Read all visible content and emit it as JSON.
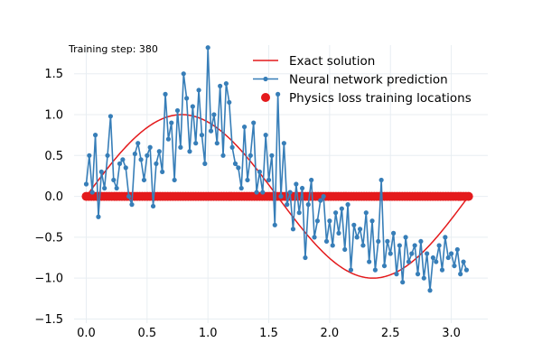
{
  "chart_data": {
    "type": "line",
    "annotation": "Training step: 380",
    "xlim": [
      -0.1,
      3.3
    ],
    "ylim": [
      -1.55,
      1.85
    ],
    "x_ticks": [
      0.0,
      0.5,
      1.0,
      1.5,
      2.0,
      2.5,
      3.0
    ],
    "x_tick_labels": [
      "0.0",
      "0.5",
      "1.0",
      "1.5",
      "2.0",
      "2.5",
      "3.0"
    ],
    "y_ticks": [
      1.5,
      1.0,
      0.5,
      0.0,
      -0.5,
      -1.0,
      -1.5
    ],
    "y_tick_labels": [
      "1.5",
      "1.0",
      "0.5",
      "0.0",
      "−0.5",
      "−1.0",
      "−1.5"
    ],
    "grid": true,
    "legend_placement": "top-right",
    "series": [
      {
        "name": "Exact solution",
        "kind": "line",
        "color": "#e41a1c",
        "function": "sin(2x)",
        "x_range": [
          0.0,
          3.14159
        ]
      },
      {
        "name": "Neural network prediction",
        "kind": "line-markers",
        "color": "#377eb8",
        "x": [
          0.0,
          0.025,
          0.05,
          0.075,
          0.1,
          0.125,
          0.15,
          0.175,
          0.2,
          0.225,
          0.25,
          0.275,
          0.3,
          0.325,
          0.35,
          0.375,
          0.4,
          0.425,
          0.45,
          0.475,
          0.5,
          0.525,
          0.55,
          0.575,
          0.6,
          0.625,
          0.65,
          0.675,
          0.7,
          0.725,
          0.75,
          0.775,
          0.8,
          0.825,
          0.85,
          0.875,
          0.9,
          0.925,
          0.95,
          0.975,
          1.0,
          1.025,
          1.05,
          1.075,
          1.1,
          1.125,
          1.15,
          1.175,
          1.2,
          1.225,
          1.25,
          1.275,
          1.3,
          1.325,
          1.35,
          1.375,
          1.4,
          1.425,
          1.45,
          1.475,
          1.5,
          1.525,
          1.55,
          1.575,
          1.6,
          1.625,
          1.65,
          1.675,
          1.7,
          1.725,
          1.75,
          1.775,
          1.8,
          1.825,
          1.85,
          1.875,
          1.9,
          1.925,
          1.95,
          1.975,
          2.0,
          2.025,
          2.05,
          2.075,
          2.1,
          2.125,
          2.15,
          2.175,
          2.2,
          2.225,
          2.25,
          2.275,
          2.3,
          2.325,
          2.35,
          2.375,
          2.4,
          2.425,
          2.45,
          2.475,
          2.5,
          2.525,
          2.55,
          2.575,
          2.6,
          2.625,
          2.65,
          2.675,
          2.7,
          2.725,
          2.75,
          2.775,
          2.8,
          2.825,
          2.85,
          2.875,
          2.9,
          2.925,
          2.95,
          2.975,
          3.0,
          3.025,
          3.05,
          3.075,
          3.1,
          3.125
        ],
        "y": [
          0.15,
          0.5,
          0.05,
          0.75,
          -0.25,
          0.3,
          0.1,
          0.5,
          0.98,
          0.2,
          0.1,
          0.4,
          0.45,
          0.35,
          0.0,
          -0.1,
          0.52,
          0.65,
          0.45,
          0.2,
          0.5,
          0.6,
          -0.12,
          0.4,
          0.55,
          0.3,
          1.25,
          0.7,
          0.9,
          0.2,
          1.05,
          0.6,
          1.5,
          1.2,
          0.55,
          1.1,
          0.65,
          1.3,
          0.75,
          0.4,
          1.82,
          0.8,
          1.0,
          0.65,
          1.35,
          0.5,
          1.38,
          1.15,
          0.6,
          0.4,
          0.35,
          0.1,
          0.85,
          0.2,
          0.5,
          0.9,
          0.05,
          0.3,
          0.05,
          0.75,
          0.2,
          0.5,
          -0.35,
          1.25,
          0.0,
          0.65,
          -0.1,
          0.05,
          -0.4,
          0.15,
          -0.2,
          0.1,
          -0.75,
          -0.1,
          0.2,
          -0.5,
          -0.3,
          -0.05,
          0.0,
          -0.55,
          -0.3,
          -0.6,
          -0.2,
          -0.45,
          -0.15,
          -0.65,
          -0.1,
          -0.9,
          -0.35,
          -0.5,
          -0.4,
          -0.6,
          -0.2,
          -0.8,
          -0.3,
          -0.9,
          -0.55,
          0.2,
          -0.85,
          -0.55,
          -0.7,
          -0.45,
          -0.95,
          -0.6,
          -1.05,
          -0.5,
          -0.8,
          -0.7,
          -0.6,
          -0.95,
          -0.55,
          -1.0,
          -0.7,
          -1.15,
          -0.75,
          -0.8,
          -0.6,
          -0.9,
          -0.5,
          -0.75,
          -0.7,
          -0.85,
          -0.65,
          -0.95,
          -0.8,
          -0.9
        ]
      },
      {
        "name": "Physics loss training locations",
        "kind": "scatter",
        "color": "#e41a1c",
        "x_range": [
          0.0,
          3.14159
        ],
        "y": 0.0
      }
    ]
  }
}
